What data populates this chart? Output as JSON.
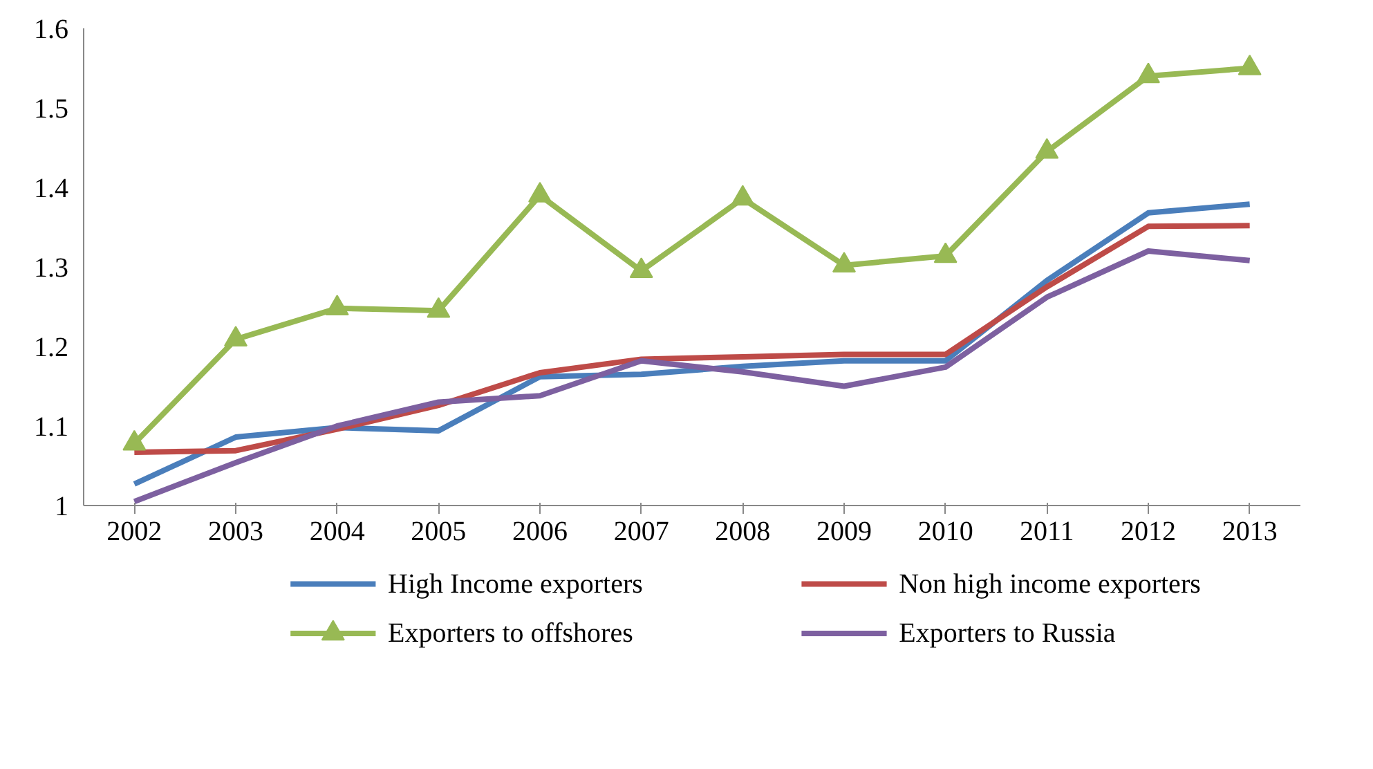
{
  "chart_data": {
    "type": "line",
    "categories": [
      "2002",
      "2003",
      "2004",
      "2005",
      "2006",
      "2007",
      "2008",
      "2009",
      "2010",
      "2011",
      "2012",
      "2013"
    ],
    "ylim": [
      1,
      1.6
    ],
    "yticks": [
      1,
      1.1,
      1.2,
      1.3,
      1.4,
      1.5,
      1.6
    ],
    "grid": false,
    "legend": "bottom",
    "line_style": "solid",
    "series": [
      {
        "name": "High Income exporters",
        "color": "#4a7ebb",
        "marker": "none",
        "values": [
          1.027,
          1.086,
          1.098,
          1.094,
          1.162,
          1.165,
          1.175,
          1.182,
          1.182,
          1.283,
          1.368,
          1.379
        ]
      },
      {
        "name": "Non high income exporters",
        "color": "#be4b48",
        "marker": "none",
        "values": [
          1.067,
          1.069,
          1.096,
          1.126,
          1.167,
          1.184,
          1.187,
          1.19,
          1.19,
          1.275,
          1.351,
          1.352
        ]
      },
      {
        "name": "Exporters to offshores",
        "color": "#98b954",
        "marker": "triangle",
        "values": [
          1.078,
          1.209,
          1.248,
          1.245,
          1.39,
          1.295,
          1.386,
          1.302,
          1.314,
          1.445,
          1.54,
          1.55
        ]
      },
      {
        "name": "Exporters to Russia",
        "color": "#7d60a0",
        "marker": "none",
        "values": [
          1.005,
          1.054,
          1.1,
          1.13,
          1.138,
          1.182,
          1.168,
          1.15,
          1.174,
          1.262,
          1.32,
          1.308
        ]
      }
    ]
  }
}
